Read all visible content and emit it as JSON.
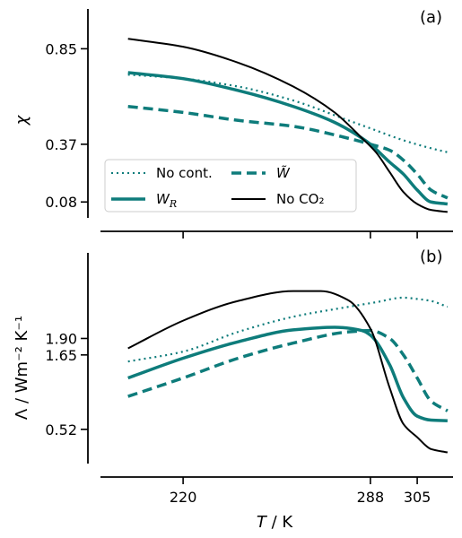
{
  "colors": {
    "teal": "#0e7c7b",
    "black": "#000000"
  },
  "chart_data": [
    {
      "type": "line",
      "panel_label": "(a)",
      "ylabel": "χ",
      "xlim": [
        190,
        318
      ],
      "ylim": [
        0.0,
        1.05
      ],
      "yticks": [
        0.08,
        0.37,
        0.85
      ],
      "ytick_labels": [
        "0.08",
        "0.37",
        "0.85"
      ],
      "grid": false,
      "legend_position": "lower-left",
      "series": [
        {
          "name": "No cont.",
          "style": "dotted",
          "x": [
            200,
            220,
            240,
            260,
            280,
            288,
            300,
            310,
            316
          ],
          "y": [
            0.72,
            0.7,
            0.66,
            0.59,
            0.49,
            0.45,
            0.39,
            0.35,
            0.33
          ]
        },
        {
          "name": "W_R",
          "style": "solid-thick",
          "x": [
            200,
            220,
            240,
            260,
            275,
            285,
            288,
            295,
            300,
            305,
            310,
            316
          ],
          "y": [
            0.73,
            0.7,
            0.64,
            0.56,
            0.48,
            0.4,
            0.37,
            0.28,
            0.22,
            0.14,
            0.08,
            0.07
          ]
        },
        {
          "name": "W̃",
          "style": "dashed",
          "x": [
            200,
            220,
            240,
            260,
            280,
            288,
            295,
            300,
            305,
            310,
            316
          ],
          "y": [
            0.56,
            0.53,
            0.49,
            0.46,
            0.4,
            0.37,
            0.34,
            0.29,
            0.22,
            0.14,
            0.1
          ]
        },
        {
          "name": "No CO₂",
          "style": "solid-thin",
          "x": [
            200,
            220,
            240,
            260,
            275,
            285,
            290,
            295,
            300,
            305,
            310,
            316
          ],
          "y": [
            0.9,
            0.86,
            0.78,
            0.66,
            0.53,
            0.4,
            0.33,
            0.23,
            0.13,
            0.07,
            0.04,
            0.03
          ]
        }
      ]
    },
    {
      "type": "line",
      "panel_label": "(b)",
      "ylabel": "Λ / Wm⁻² K⁻¹",
      "xlabel": "T / K",
      "xlim": [
        190,
        318
      ],
      "ylim": [
        0.0,
        3.2
      ],
      "xticks": [
        220,
        288,
        305
      ],
      "xtick_labels": [
        "220",
        "288",
        "305"
      ],
      "yticks": [
        0.52,
        1.65,
        1.9
      ],
      "ytick_labels": [
        "0.52",
        "1.65",
        "1.90"
      ],
      "grid": false,
      "series": [
        {
          "name": "No cont.",
          "style": "dotted",
          "x": [
            200,
            220,
            240,
            260,
            280,
            290,
            300,
            305,
            310,
            316
          ],
          "y": [
            1.55,
            1.7,
            2.0,
            2.23,
            2.38,
            2.45,
            2.52,
            2.5,
            2.47,
            2.38
          ]
        },
        {
          "name": "W_R",
          "style": "solid-thick",
          "x": [
            200,
            220,
            240,
            260,
            275,
            285,
            288,
            295,
            300,
            305,
            310,
            316
          ],
          "y": [
            1.3,
            1.6,
            1.85,
            2.03,
            2.07,
            2.02,
            1.95,
            1.5,
            1.0,
            0.72,
            0.66,
            0.65
          ]
        },
        {
          "name": "W̃",
          "style": "dashed",
          "x": [
            200,
            220,
            240,
            260,
            280,
            288,
            295,
            300,
            305,
            310,
            316
          ],
          "y": [
            1.02,
            1.3,
            1.6,
            1.83,
            2.0,
            2.02,
            1.9,
            1.65,
            1.3,
            0.95,
            0.8
          ]
        },
        {
          "name": "No CO₂",
          "style": "solid-thin",
          "x": [
            200,
            220,
            240,
            260,
            270,
            280,
            288,
            295,
            300,
            305,
            310,
            316
          ],
          "y": [
            1.75,
            2.17,
            2.47,
            2.62,
            2.62,
            2.48,
            2.05,
            1.15,
            0.6,
            0.4,
            0.22,
            0.17
          ]
        }
      ]
    }
  ]
}
